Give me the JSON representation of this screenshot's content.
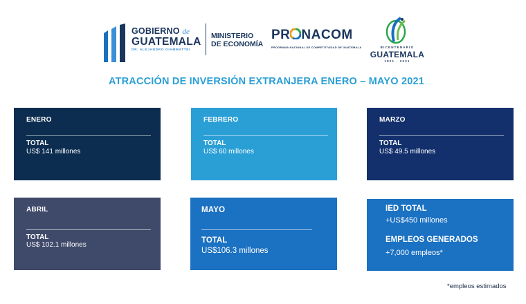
{
  "header": {
    "gobierno": {
      "line1": "GOBIERNO",
      "de": "de",
      "line2": "GUATEMALA",
      "line3": "DR. ALEJANDRO GIAMMATTEI"
    },
    "ministerio": {
      "line1": "MINISTERIO",
      "line2": "DE ECONOMÍA"
    },
    "pronacom": {
      "word_left": "PR",
      "word_right": "NACOM",
      "subtitle": "PROGRAMA NACIONAL DE COMPETITIVIDAD DE GUATEMALA"
    },
    "bicentenario": {
      "small": "BICENTENARIO",
      "name": "GUATEMALA",
      "years": "1821 · 2021"
    }
  },
  "title": "ATRACCIÓN DE INVERSIÓN EXTRANJERA ENERO – MAYO 2021",
  "cards": {
    "enero": {
      "month": "ENERO",
      "total_label": "TOTAL",
      "total_value": "US$ 141 millones"
    },
    "febrero": {
      "month": "FEBRERO",
      "total_label": "TOTAL",
      "total_value": "US$ 60 millones"
    },
    "marzo": {
      "month": "MARZO",
      "total_label": "TOTAL",
      "total_value": "US$ 49.5 millones"
    },
    "abril": {
      "month": "ABRIL",
      "total_label": "TOTAL",
      "total_value": "US$ 102.1 millones"
    },
    "mayo": {
      "month": "MAYO",
      "total_label": "TOTAL",
      "total_value": "US$106.3 millones"
    }
  },
  "summary": {
    "ied_label": "IED TOTAL",
    "ied_value": "+US$450 millones",
    "empleos_label": "EMPLEOS GENERADOS",
    "empleos_value": "+7,000 empleos*"
  },
  "footnote": "*empleos estimados",
  "colors": {
    "title": "#2a9fd6",
    "enero": "#0c2d50",
    "febrero": "#2a9fd6",
    "marzo": "#13306c",
    "abril": "#3f4a6a",
    "mayo": "#1b71c2",
    "summary": "#1b71c2",
    "brand_navy": "#1b365d"
  }
}
